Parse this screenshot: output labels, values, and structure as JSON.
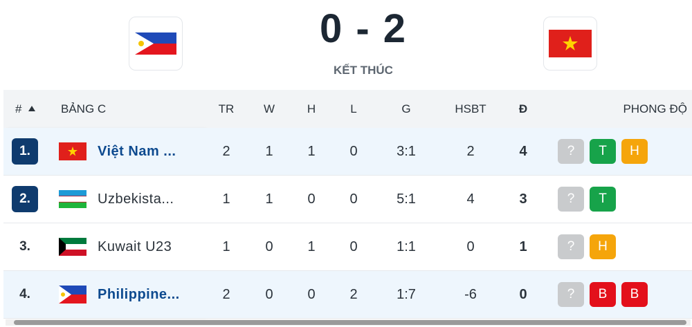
{
  "match": {
    "home_score": 0,
    "separator": "-",
    "away_score": 2,
    "status": "KẾT THÚC"
  },
  "table": {
    "header": [
      "#",
      "BẢNG C",
      "TR",
      "W",
      "H",
      "L",
      "G",
      "HSBT",
      "Đ",
      "PHONG ĐỘ"
    ],
    "rows": [
      {
        "rank": "1.",
        "team": "Việt Nam ...",
        "stats": [
          2,
          1,
          1,
          0,
          "3:1",
          2,
          4
        ],
        "form": [
          "?",
          "T",
          "H"
        ]
      },
      {
        "rank": "2.",
        "team": "Uzbekista...",
        "stats": [
          1,
          1,
          0,
          0,
          "5:1",
          4,
          3
        ],
        "form": [
          "?",
          "T"
        ]
      },
      {
        "rank": "3.",
        "team": "Kuwait U23",
        "stats": [
          1,
          0,
          1,
          0,
          "1:1",
          0,
          1
        ],
        "form": [
          "?",
          "H"
        ]
      },
      {
        "rank": "4.",
        "team": "Philippine...",
        "stats": [
          2,
          0,
          0,
          2,
          "1:7",
          -6,
          0
        ],
        "form": [
          "?",
          "B",
          "B"
        ]
      }
    ]
  }
}
